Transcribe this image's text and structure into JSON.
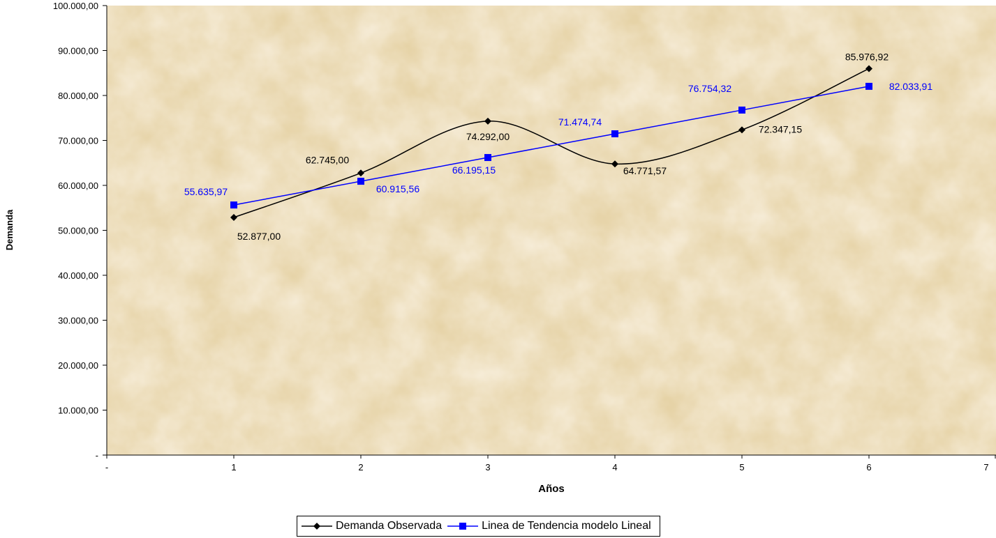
{
  "chart_data": {
    "type": "line",
    "xlabel": "Años",
    "ylabel": "Demanda",
    "xlim": [
      0,
      7
    ],
    "ylim": [
      0,
      100000
    ],
    "x_ticks": [
      "-",
      "1",
      "2",
      "3",
      "4",
      "5",
      "6",
      "7"
    ],
    "y_ticks": [
      "-",
      "10.000,00",
      "20.000,00",
      "30.000,00",
      "40.000,00",
      "50.000,00",
      "60.000,00",
      "70.000,00",
      "80.000,00",
      "90.000,00",
      "100.000,00"
    ],
    "grid": false,
    "legend_position": "bottom",
    "series": [
      {
        "name": "Demanda Observada",
        "color": "#000000",
        "marker": "diamond",
        "smooth": true,
        "x": [
          1,
          2,
          3,
          4,
          5,
          6
        ],
        "values": [
          52877.0,
          62745.0,
          74292.0,
          64771.57,
          72347.15,
          85976.92
        ],
        "labels": [
          "52.877,00",
          "62.745,00",
          "74.292,00",
          "64.771,57",
          "72.347,15",
          "85.976,92"
        ]
      },
      {
        "name": "Linea de Tendencia modelo Lineal",
        "color": "#0000ff",
        "marker": "square",
        "smooth": false,
        "x": [
          1,
          2,
          3,
          4,
          5,
          6
        ],
        "values": [
          55635.97,
          60915.56,
          66195.15,
          71474.74,
          76754.32,
          82033.91
        ],
        "labels": [
          "55.635,97",
          "60.915,56",
          "66.195,15",
          "71.474,74",
          "76.754,32",
          "82.033,91"
        ]
      }
    ]
  }
}
